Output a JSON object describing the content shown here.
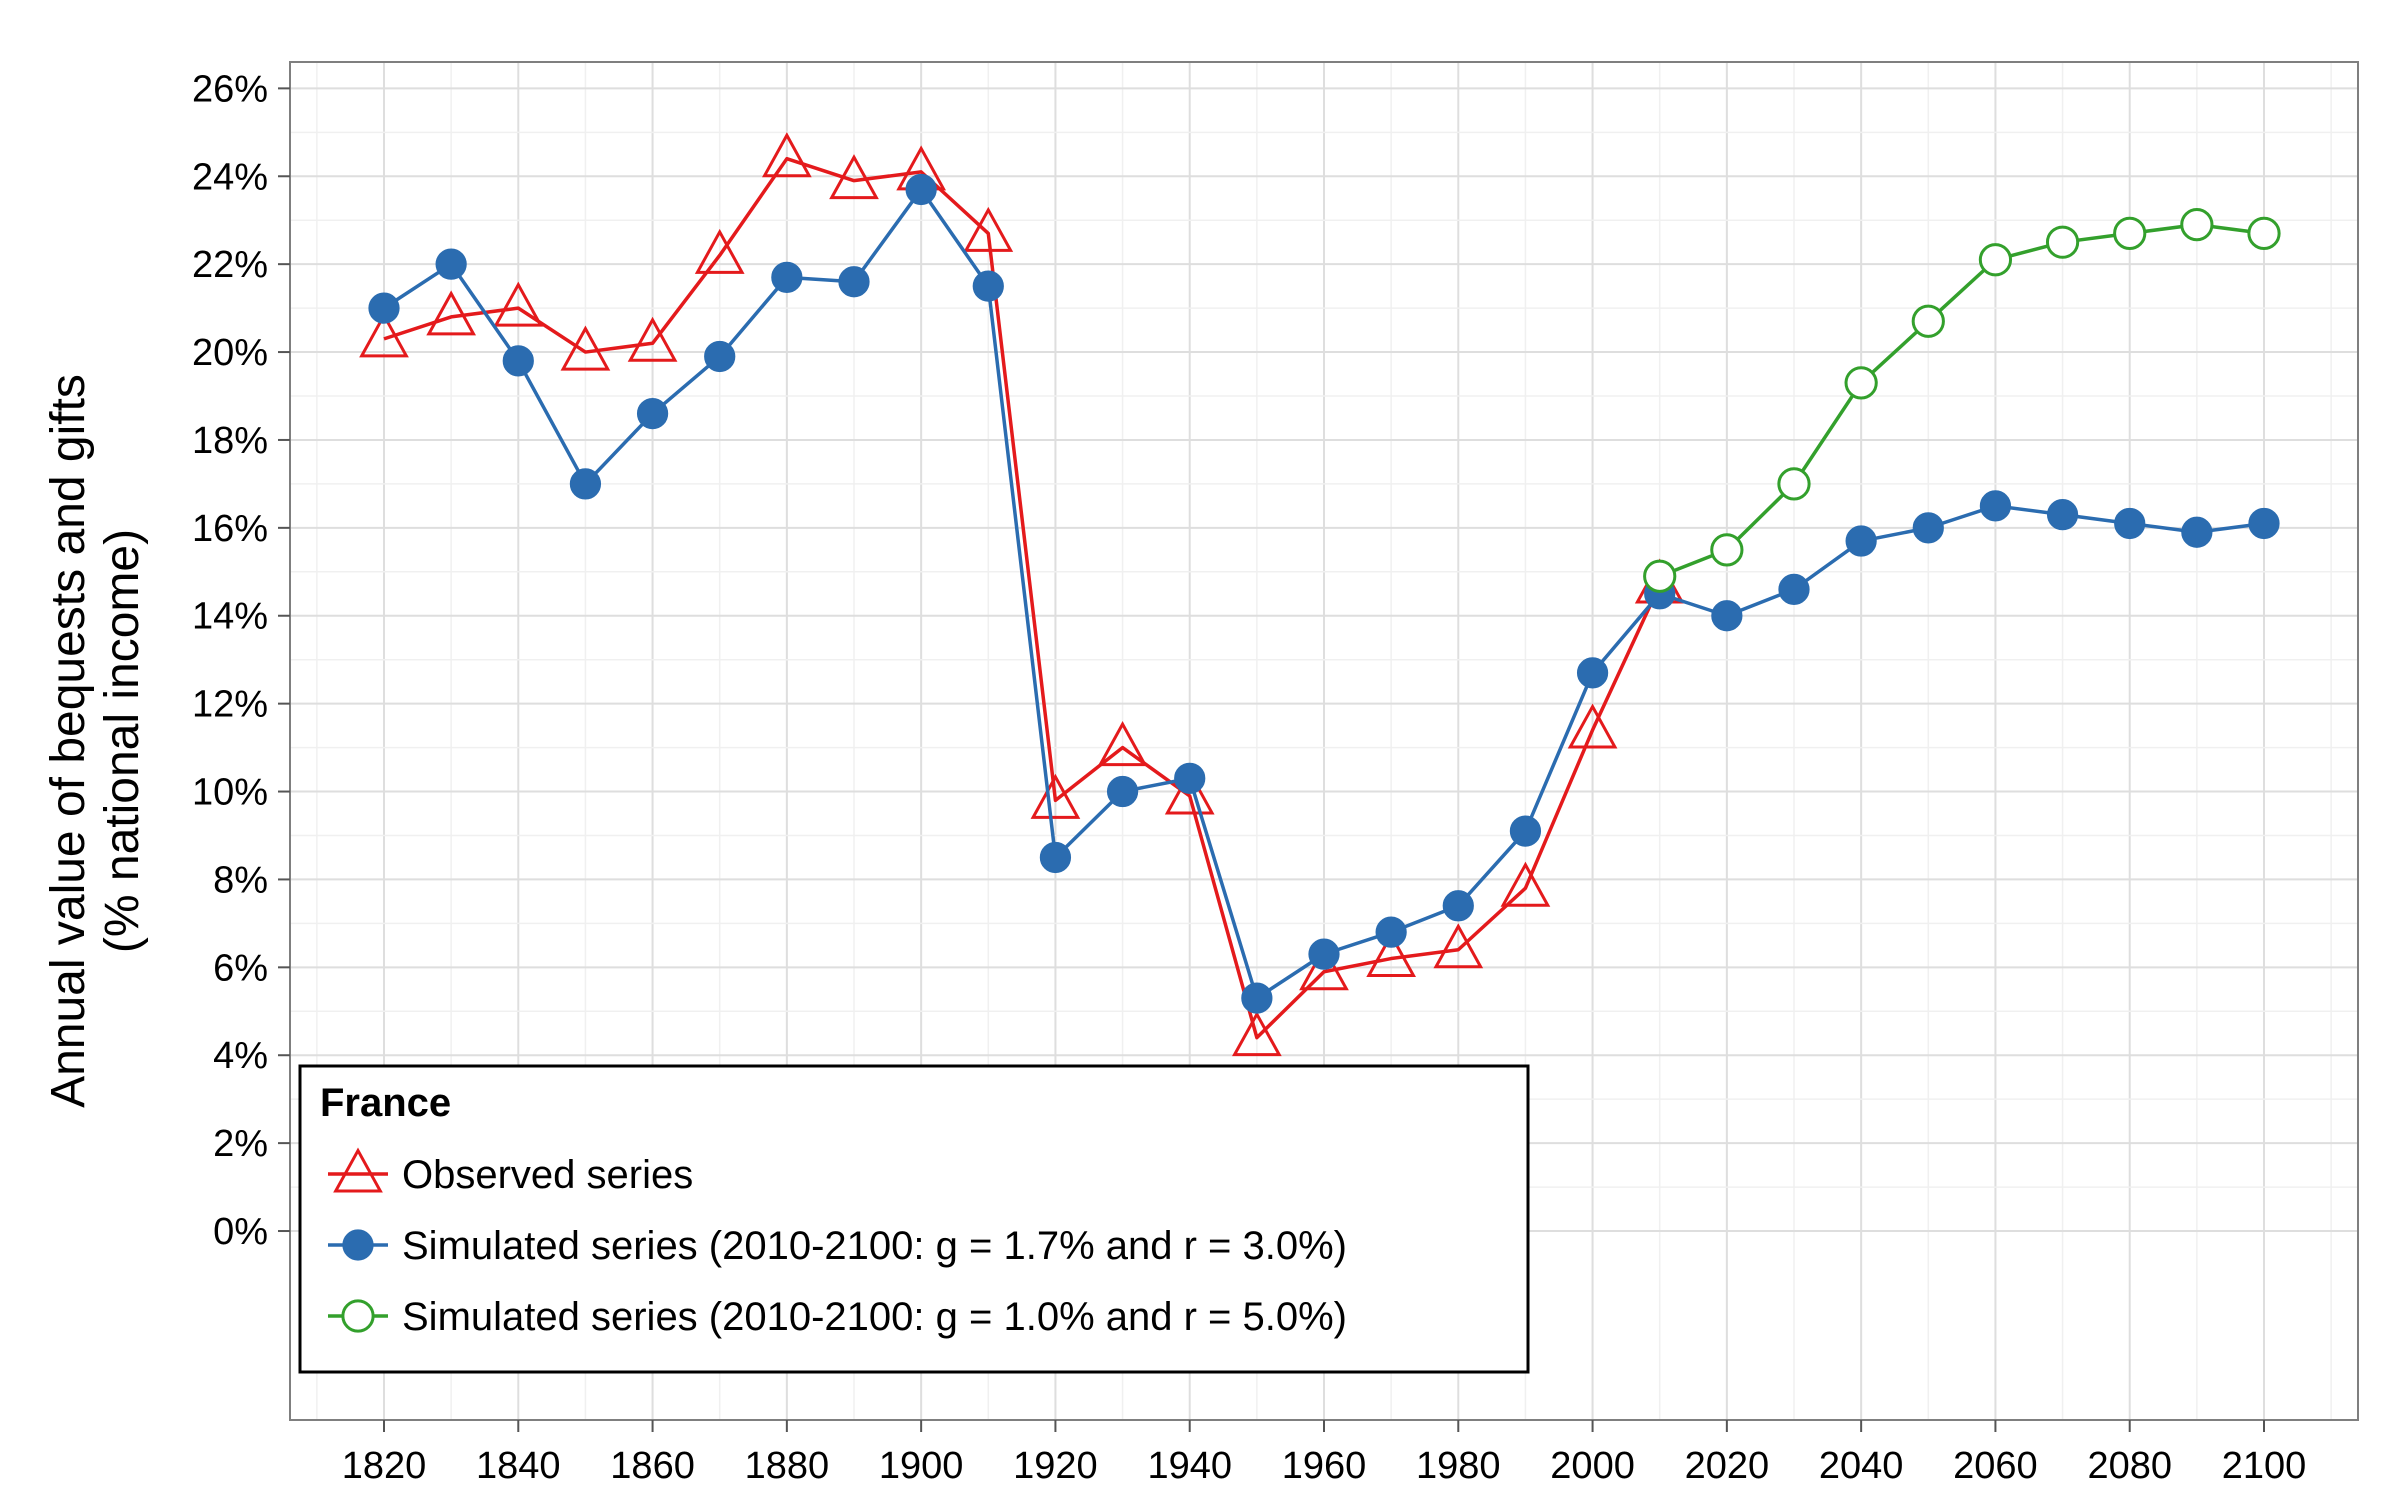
{
  "chart_data": {
    "type": "line",
    "title": "",
    "ylabel": "Annual value of bequests and gifts",
    "ylabel_line2": "(% national income)",
    "xlabel": "",
    "xlim": [
      1806,
      2114
    ],
    "ylim": [
      -4.3,
      26.6
    ],
    "x_ticks": [
      1820,
      1840,
      1860,
      1880,
      1900,
      1920,
      1940,
      1960,
      1980,
      2000,
      2020,
      2040,
      2060,
      2080,
      2100
    ],
    "y_ticks": [
      0,
      2,
      4,
      6,
      8,
      10,
      12,
      14,
      16,
      18,
      20,
      22,
      24,
      26
    ],
    "y_tick_labels": [
      "0%",
      "2%",
      "4%",
      "6%",
      "8%",
      "10%",
      "12%",
      "14%",
      "16%",
      "18%",
      "20%",
      "22%",
      "24%",
      "26%"
    ],
    "grid": true,
    "legend": {
      "title": "France",
      "position": "bottom-left"
    },
    "series": [
      {
        "name": "Observed series",
        "color": "#e41a1c",
        "marker": "triangle-open",
        "x": [
          1820,
          1830,
          1840,
          1850,
          1860,
          1870,
          1880,
          1890,
          1900,
          1910,
          1920,
          1930,
          1940,
          1950,
          1960,
          1970,
          1980,
          1990,
          2000,
          2010
        ],
        "values": [
          20.3,
          20.8,
          21.0,
          20.0,
          20.2,
          22.2,
          24.4,
          23.9,
          24.1,
          22.7,
          9.8,
          11.0,
          9.9,
          4.4,
          5.9,
          6.2,
          6.4,
          7.8,
          11.4,
          14.7
        ]
      },
      {
        "name": "Simulated series (2010-2100: g = 1.7% and r = 3.0%)",
        "color": "#2b6cb0",
        "marker": "circle-filled",
        "x": [
          1820,
          1830,
          1840,
          1850,
          1860,
          1870,
          1880,
          1890,
          1900,
          1910,
          1920,
          1930,
          1940,
          1950,
          1960,
          1970,
          1980,
          1990,
          2000,
          2010,
          2020,
          2030,
          2040,
          2050,
          2060,
          2070,
          2080,
          2090,
          2100
        ],
        "values": [
          21.0,
          22.0,
          19.8,
          17.0,
          18.6,
          19.9,
          21.7,
          21.6,
          23.7,
          21.5,
          8.5,
          10.0,
          10.3,
          5.3,
          6.3,
          6.8,
          7.4,
          9.1,
          12.7,
          14.5,
          14.0,
          14.6,
          15.7,
          16.0,
          16.5,
          16.3,
          16.1,
          15.9,
          16.1
        ]
      },
      {
        "name": "Simulated series (2010-2100: g = 1.0% and r = 5.0%)",
        "color": "#33a02c",
        "marker": "circle-open",
        "x": [
          2010,
          2020,
          2030,
          2040,
          2050,
          2060,
          2070,
          2080,
          2090,
          2100
        ],
        "values": [
          14.9,
          15.5,
          17.0,
          19.3,
          20.7,
          22.1,
          22.5,
          22.7,
          22.9,
          22.7
        ]
      }
    ]
  }
}
